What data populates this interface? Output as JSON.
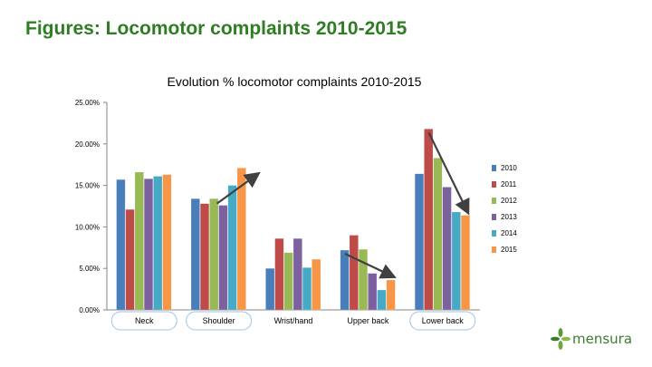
{
  "slide": {
    "title": "Figures: Locomotor complaints 2010-2015"
  },
  "logo": {
    "text": "mensura",
    "color": "#3b7d2e",
    "icon": "mensura-leaf-logo"
  },
  "chart_data": {
    "type": "bar",
    "title": "Evolution % locomotor complaints 2010-2015",
    "xlabel": "",
    "ylabel": "",
    "ylim": [
      0,
      25
    ],
    "yticks": [
      "0.00%",
      "5.00%",
      "10.00%",
      "15.00%",
      "20.00%",
      "25.00%"
    ],
    "grid": false,
    "legend_position": "right",
    "categories": [
      "Neck",
      "Shoulder",
      "Wrist/hand",
      "Upper back",
      "Lower back"
    ],
    "highlighted_categories": [
      "Neck",
      "Shoulder",
      "Lower back"
    ],
    "series": [
      {
        "name": "2010",
        "color": "#4a7ebb",
        "values": [
          15.7,
          13.4,
          5.0,
          7.2,
          16.4
        ]
      },
      {
        "name": "2011",
        "color": "#be4b48",
        "values": [
          12.1,
          12.8,
          8.6,
          9.0,
          21.8
        ]
      },
      {
        "name": "2012",
        "color": "#98b954",
        "values": [
          16.6,
          13.4,
          6.9,
          7.3,
          18.3
        ]
      },
      {
        "name": "2013",
        "color": "#7d60a0",
        "values": [
          15.8,
          12.6,
          8.6,
          4.4,
          14.8
        ]
      },
      {
        "name": "2014",
        "color": "#46aac5",
        "values": [
          16.1,
          15.0,
          5.1,
          2.4,
          11.8
        ]
      },
      {
        "name": "2015",
        "color": "#f79646",
        "values": [
          16.3,
          17.1,
          6.1,
          3.6,
          11.4
        ]
      }
    ],
    "trend_arrows": [
      {
        "category": "Shoulder",
        "direction": "up"
      },
      {
        "category": "Upper back",
        "direction": "down"
      },
      {
        "category": "Lower back",
        "direction": "down"
      }
    ]
  }
}
